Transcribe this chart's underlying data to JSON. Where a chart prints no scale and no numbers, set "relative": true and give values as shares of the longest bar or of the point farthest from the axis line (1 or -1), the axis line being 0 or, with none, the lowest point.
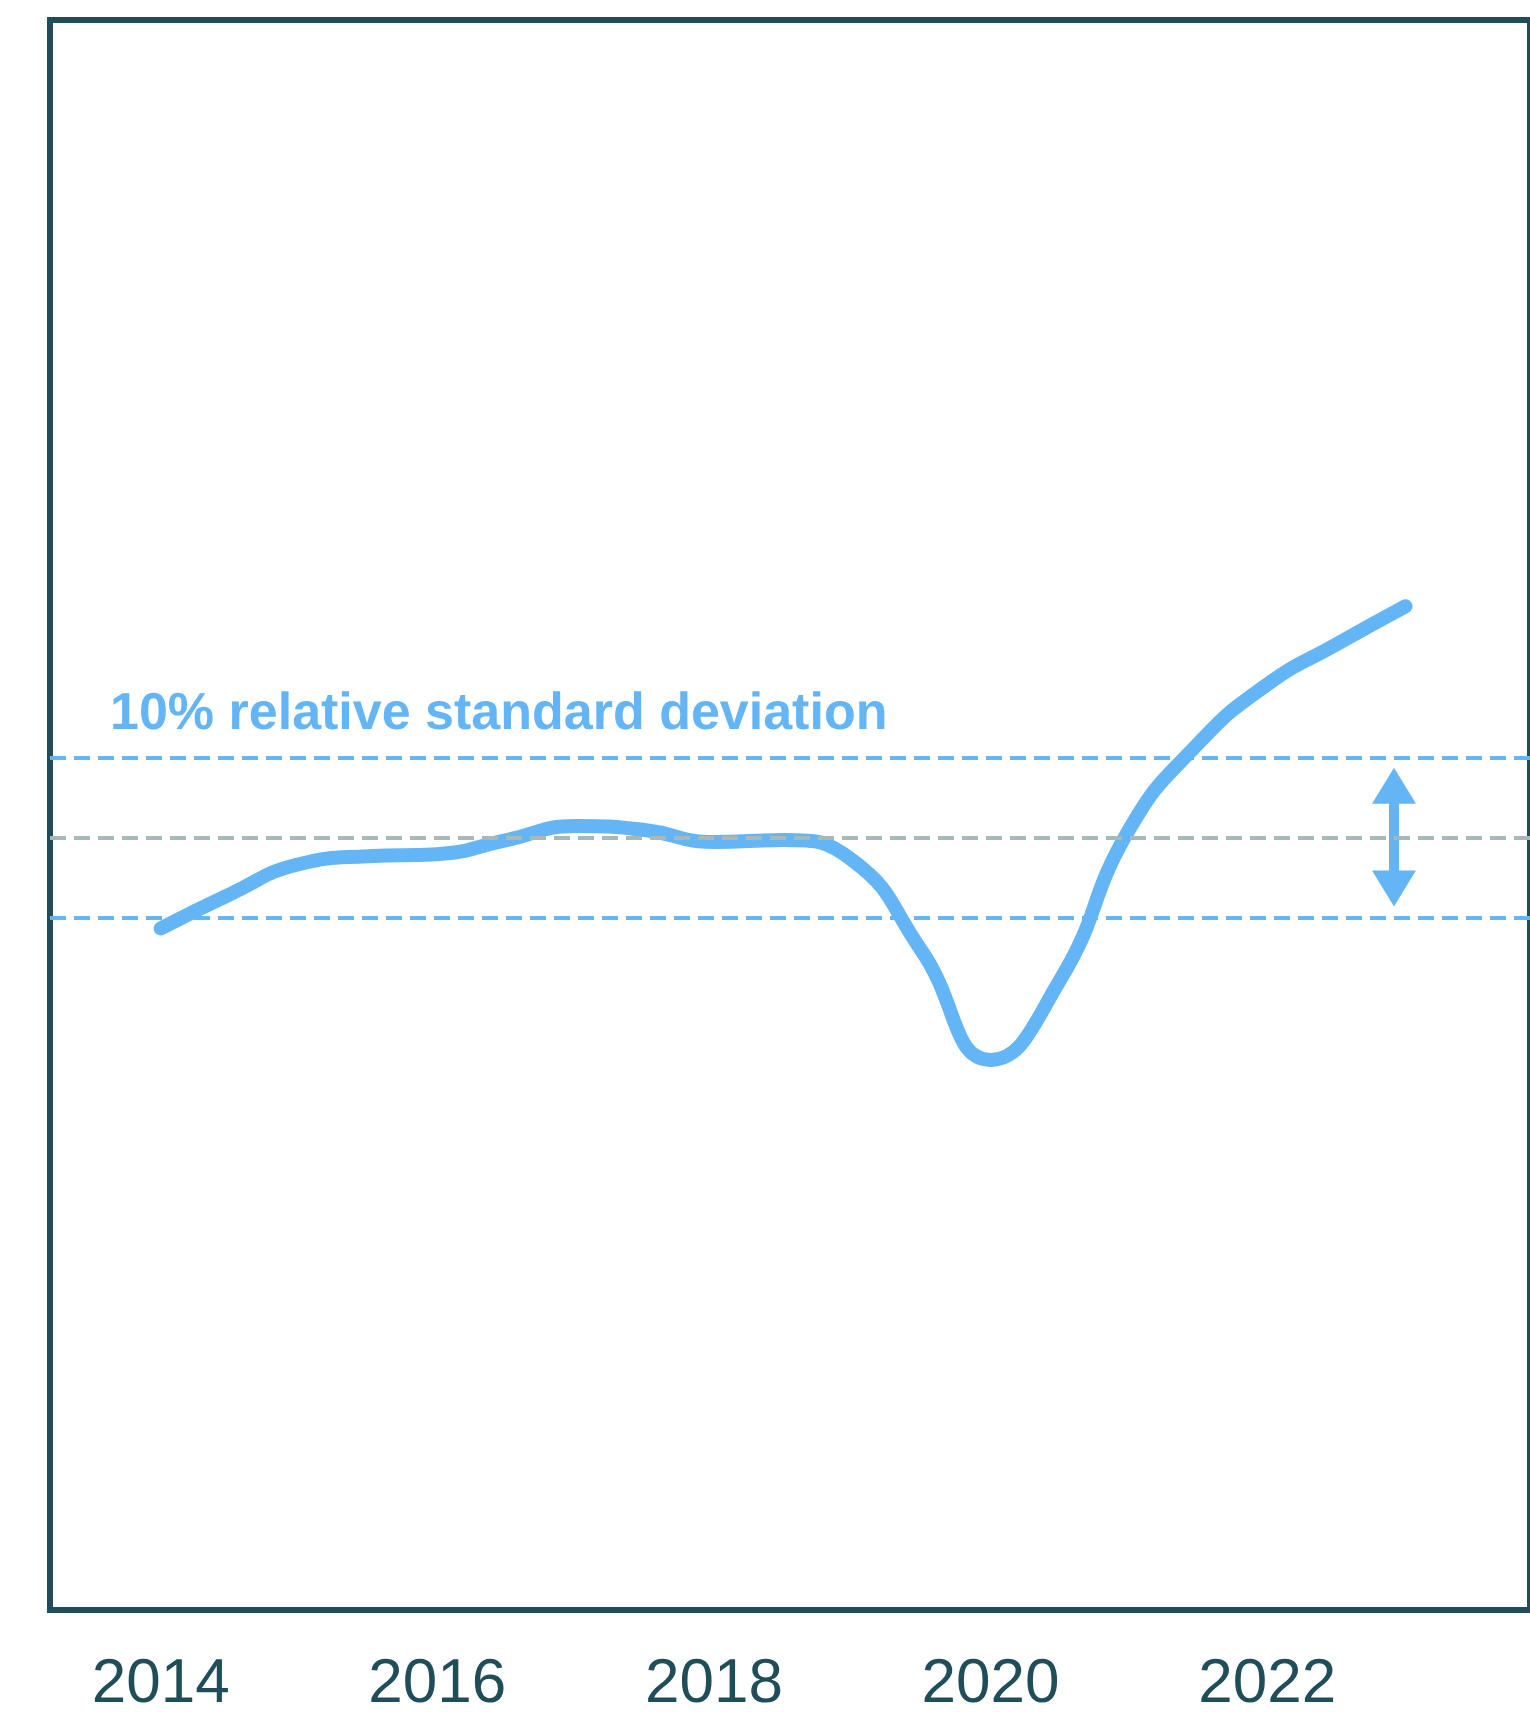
{
  "chart_data": {
    "type": "line",
    "relative": true,
    "tick_labels": "x",
    "xlim": [
      2013.2,
      2023.9
    ],
    "xticks": [
      2014,
      2016,
      2018,
      2020,
      2022
    ],
    "series": [
      {
        "color": "#64b5f6",
        "x": [
          2014,
          2014.5,
          2015,
          2015.5,
          2016,
          2016.5,
          2017,
          2017.5,
          2018,
          2018.5,
          2019,
          2019.5,
          2020,
          2020.5,
          2021,
          2021.5,
          2022,
          2022.5,
          2023
        ],
        "values": [
          0.679,
          0.713,
          0.743,
          0.751,
          0.753,
          0.767,
          0.781,
          0.777,
          0.765,
          0.767,
          0.747,
          0.657,
          0.548,
          0.627,
          0.777,
          0.863,
          0.922,
          0.962,
          1.0
        ]
      }
    ],
    "ref_lines": [
      {
        "axis": "y",
        "value": 0.769,
        "color": "#a7b8bb",
        "line_style": "dashed"
      },
      {
        "axis": "y",
        "value": 0.847,
        "label": "10% relative standard deviation",
        "color": "#64b5f6",
        "line_style": "dashed"
      },
      {
        "axis": "y",
        "value": 0.693,
        "color": "#64b5f6",
        "line_style": "dashed"
      }
    ]
  }
}
